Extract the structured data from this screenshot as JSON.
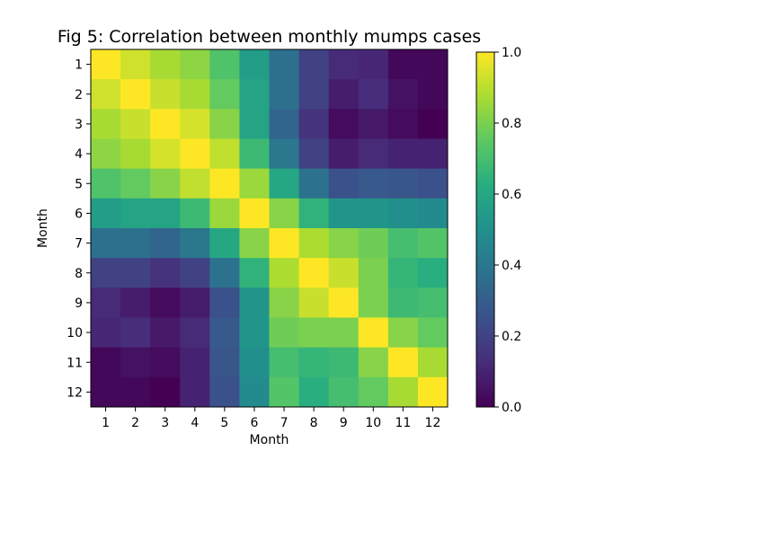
{
  "chart_data": {
    "type": "heatmap",
    "title": "Fig 5: Correlation between monthly mumps cases",
    "xlabel": "Month",
    "ylabel": "Month",
    "x_categories": [
      "1",
      "2",
      "3",
      "4",
      "5",
      "6",
      "7",
      "8",
      "9",
      "10",
      "11",
      "12"
    ],
    "y_categories": [
      "1",
      "2",
      "3",
      "4",
      "5",
      "6",
      "7",
      "8",
      "9",
      "10",
      "11",
      "12"
    ],
    "values": [
      [
        1.0,
        0.93,
        0.87,
        0.83,
        0.72,
        0.55,
        0.37,
        0.2,
        0.12,
        0.11,
        0.02,
        0.02
      ],
      [
        0.93,
        1.0,
        0.92,
        0.87,
        0.76,
        0.58,
        0.37,
        0.2,
        0.08,
        0.13,
        0.05,
        0.02
      ],
      [
        0.87,
        0.92,
        1.0,
        0.94,
        0.82,
        0.58,
        0.33,
        0.15,
        0.03,
        0.07,
        0.03,
        0.0
      ],
      [
        0.83,
        0.87,
        0.94,
        1.0,
        0.91,
        0.68,
        0.4,
        0.2,
        0.08,
        0.12,
        0.1,
        0.1
      ],
      [
        0.72,
        0.76,
        0.82,
        0.91,
        1.0,
        0.85,
        0.6,
        0.38,
        0.25,
        0.28,
        0.27,
        0.25
      ],
      [
        0.55,
        0.58,
        0.58,
        0.68,
        0.85,
        1.0,
        0.82,
        0.65,
        0.52,
        0.52,
        0.5,
        0.48
      ],
      [
        0.37,
        0.37,
        0.33,
        0.4,
        0.6,
        0.82,
        1.0,
        0.88,
        0.82,
        0.78,
        0.7,
        0.73
      ],
      [
        0.2,
        0.2,
        0.15,
        0.2,
        0.38,
        0.65,
        0.88,
        1.0,
        0.92,
        0.8,
        0.66,
        0.63
      ],
      [
        0.12,
        0.08,
        0.03,
        0.08,
        0.25,
        0.52,
        0.82,
        0.92,
        1.0,
        0.8,
        0.68,
        0.7
      ],
      [
        0.11,
        0.13,
        0.07,
        0.12,
        0.28,
        0.52,
        0.78,
        0.8,
        0.8,
        1.0,
        0.82,
        0.76
      ],
      [
        0.02,
        0.05,
        0.03,
        0.1,
        0.27,
        0.5,
        0.7,
        0.66,
        0.68,
        0.82,
        1.0,
        0.87
      ],
      [
        0.02,
        0.02,
        0.0,
        0.1,
        0.25,
        0.48,
        0.73,
        0.63,
        0.7,
        0.76,
        0.87,
        1.0
      ]
    ],
    "colormap": "viridis",
    "colorbar": {
      "range": [
        0.0,
        1.0
      ],
      "ticks": [
        0.0,
        0.2,
        0.4,
        0.6,
        0.8,
        1.0
      ],
      "tick_labels": [
        "0.0",
        "0.2",
        "0.4",
        "0.6",
        "0.8",
        "1.0"
      ]
    },
    "grid": false
  }
}
